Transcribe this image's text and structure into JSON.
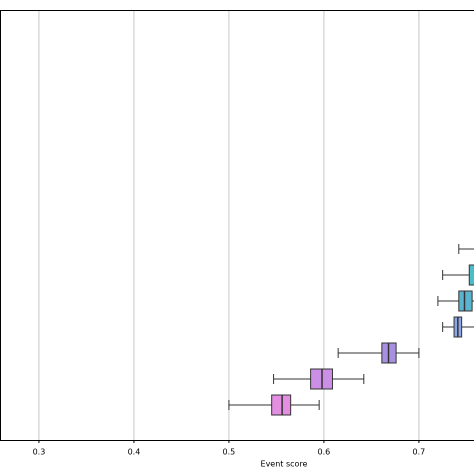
{
  "chart_data": {
    "type": "boxplot",
    "xlabel": "Event score",
    "xlim": [
      0.259,
      0.758
    ],
    "xticks": [
      0.3,
      0.4,
      0.5,
      0.6,
      0.7
    ],
    "grid": true,
    "boxes": [
      {
        "color": "#e38ee0",
        "whislo": 0.5,
        "q1": 0.545,
        "med": 0.556,
        "q3": 0.565,
        "whishi": 0.595
      },
      {
        "color": "#cc8fe6",
        "whislo": 0.547,
        "q1": 0.586,
        "med": 0.598,
        "q3": 0.609,
        "whishi": 0.642
      },
      {
        "color": "#a890e0",
        "whislo": 0.615,
        "q1": 0.661,
        "med": 0.668,
        "q3": 0.676,
        "whishi": 0.7
      },
      {
        "color": "#8ea8e6",
        "whislo": 0.725,
        "q1": 0.737,
        "med": 0.741,
        "q3": 0.745,
        "whishi": null
      },
      {
        "color": "#5ab4d0",
        "whislo": 0.72,
        "q1": 0.742,
        "med": 0.748,
        "q3": 0.756,
        "whishi": null
      },
      {
        "color": "#4bbcc8",
        "whislo": 0.725,
        "q1": 0.753,
        "med": null,
        "q3": null,
        "whishi": null
      },
      {
        "color": "#4cc0b8",
        "whislo": 0.742,
        "q1": null,
        "med": null,
        "q3": null,
        "whishi": null
      }
    ]
  }
}
